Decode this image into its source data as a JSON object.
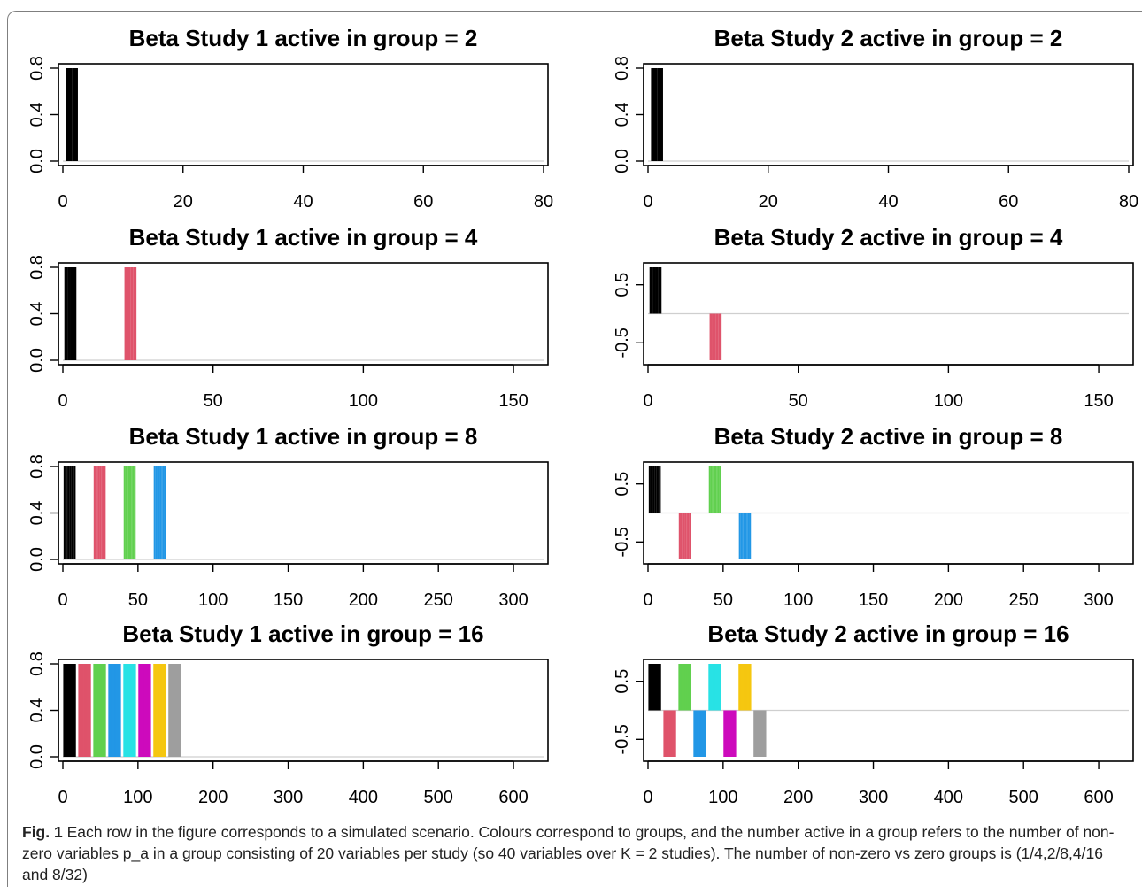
{
  "chart_data": [
    {
      "type": "bar",
      "title": "Beta Study 1 active in group = 2",
      "xlabel": "",
      "ylabel": "",
      "xlim": [
        0,
        80
      ],
      "ylim": [
        0,
        0.8
      ],
      "xticks": [
        "0",
        "20",
        "40",
        "60",
        "80"
      ],
      "yticks": [
        "0.0",
        "0.4",
        "0.8"
      ],
      "series": [
        {
          "color": "#000000",
          "x": [
            1,
            2
          ],
          "values": [
            0.8,
            0.8
          ]
        }
      ]
    },
    {
      "type": "bar",
      "title": "Beta Study 2 active in group = 2",
      "xlabel": "",
      "ylabel": "",
      "xlim": [
        0,
        80
      ],
      "ylim": [
        0,
        0.8
      ],
      "xticks": [
        "0",
        "20",
        "40",
        "60",
        "80"
      ],
      "yticks": [
        "0.0",
        "0.4",
        "0.8"
      ],
      "series": [
        {
          "color": "#000000",
          "x": [
            1,
            2
          ],
          "values": [
            0.8,
            0.8
          ]
        }
      ]
    },
    {
      "type": "bar",
      "title": "Beta Study 1 active in group = 4",
      "xlabel": "",
      "ylabel": "",
      "xlim": [
        0,
        160
      ],
      "ylim": [
        0,
        0.8
      ],
      "xticks": [
        "0",
        "50",
        "100",
        "150"
      ],
      "yticks": [
        "0.0",
        "0.4",
        "0.8"
      ],
      "series": [
        {
          "color": "#000000",
          "x": [
            1,
            2,
            3,
            4
          ],
          "values": [
            0.8,
            0.8,
            0.8,
            0.8
          ]
        },
        {
          "color": "#df536b",
          "x": [
            21,
            22,
            23,
            24
          ],
          "values": [
            0.8,
            0.8,
            0.8,
            0.8
          ]
        }
      ]
    },
    {
      "type": "bar",
      "title": "Beta Study 2 active in group = 4",
      "xlabel": "",
      "ylabel": "",
      "xlim": [
        0,
        160
      ],
      "ylim": [
        -0.8,
        0.8
      ],
      "xticks": [
        "0",
        "50",
        "100",
        "150"
      ],
      "yticks": [
        "-0.5",
        "0.5"
      ],
      "series": [
        {
          "color": "#000000",
          "x": [
            1,
            2,
            3,
            4
          ],
          "values": [
            0.8,
            0.8,
            0.8,
            0.8
          ]
        },
        {
          "color": "#df536b",
          "x": [
            21,
            22,
            23,
            24
          ],
          "values": [
            -0.8,
            -0.8,
            -0.8,
            -0.8
          ]
        }
      ]
    },
    {
      "type": "bar",
      "title": "Beta Study 1 active in group = 8",
      "xlabel": "",
      "ylabel": "",
      "xlim": [
        0,
        320
      ],
      "ylim": [
        0,
        0.8
      ],
      "xticks": [
        "0",
        "50",
        "100",
        "150",
        "200",
        "250",
        "300"
      ],
      "yticks": [
        "0.0",
        "0.4",
        "0.8"
      ],
      "series": [
        {
          "color": "#000000",
          "x": [
            1,
            2,
            3,
            4,
            5,
            6,
            7,
            8
          ],
          "values": [
            0.8,
            0.8,
            0.8,
            0.8,
            0.8,
            0.8,
            0.8,
            0.8
          ]
        },
        {
          "color": "#df536b",
          "x": [
            21,
            22,
            23,
            24,
            25,
            26,
            27,
            28
          ],
          "values": [
            0.8,
            0.8,
            0.8,
            0.8,
            0.8,
            0.8,
            0.8,
            0.8
          ]
        },
        {
          "color": "#61d04f",
          "x": [
            41,
            42,
            43,
            44,
            45,
            46,
            47,
            48
          ],
          "values": [
            0.8,
            0.8,
            0.8,
            0.8,
            0.8,
            0.8,
            0.8,
            0.8
          ]
        },
        {
          "color": "#2297e6",
          "x": [
            61,
            62,
            63,
            64,
            65,
            66,
            67,
            68
          ],
          "values": [
            0.8,
            0.8,
            0.8,
            0.8,
            0.8,
            0.8,
            0.8,
            0.8
          ]
        }
      ]
    },
    {
      "type": "bar",
      "title": "Beta Study 2 active in group = 8",
      "xlabel": "",
      "ylabel": "",
      "xlim": [
        0,
        320
      ],
      "ylim": [
        -0.8,
        0.8
      ],
      "xticks": [
        "0",
        "50",
        "100",
        "150",
        "200",
        "250",
        "300"
      ],
      "yticks": [
        "-0.5",
        "0.5"
      ],
      "series": [
        {
          "color": "#000000",
          "x": [
            1,
            2,
            3,
            4,
            5,
            6,
            7,
            8
          ],
          "values": [
            0.8,
            0.8,
            0.8,
            0.8,
            0.8,
            0.8,
            0.8,
            0.8
          ]
        },
        {
          "color": "#df536b",
          "x": [
            21,
            22,
            23,
            24,
            25,
            26,
            27,
            28
          ],
          "values": [
            -0.8,
            -0.8,
            -0.8,
            -0.8,
            -0.8,
            -0.8,
            -0.8,
            -0.8
          ]
        },
        {
          "color": "#61d04f",
          "x": [
            41,
            42,
            43,
            44,
            45,
            46,
            47,
            48
          ],
          "values": [
            0.8,
            0.8,
            0.8,
            0.8,
            0.8,
            0.8,
            0.8,
            0.8
          ]
        },
        {
          "color": "#2297e6",
          "x": [
            61,
            62,
            63,
            64,
            65,
            66,
            67,
            68
          ],
          "values": [
            -0.8,
            -0.8,
            -0.8,
            -0.8,
            -0.8,
            -0.8,
            -0.8,
            -0.8
          ]
        }
      ]
    },
    {
      "type": "bar",
      "title": "Beta Study 1 active in group = 16",
      "xlabel": "",
      "ylabel": "",
      "xlim": [
        0,
        640
      ],
      "ylim": [
        0,
        0.8
      ],
      "xticks": [
        "0",
        "100",
        "200",
        "300",
        "400",
        "500",
        "600"
      ],
      "yticks": [
        "0.0",
        "0.4",
        "0.8"
      ],
      "series": [
        {
          "color": "#000000",
          "x": [
            1,
            2,
            3,
            4,
            5,
            6,
            7,
            8,
            9,
            10,
            11,
            12,
            13,
            14,
            15,
            16
          ],
          "values": [
            0.8,
            0.8,
            0.8,
            0.8,
            0.8,
            0.8,
            0.8,
            0.8,
            0.8,
            0.8,
            0.8,
            0.8,
            0.8,
            0.8,
            0.8,
            0.8
          ]
        },
        {
          "color": "#df536b",
          "x": [
            21,
            22,
            23,
            24,
            25,
            26,
            27,
            28,
            29,
            30,
            31,
            32,
            33,
            34,
            35,
            36
          ],
          "values": [
            0.8,
            0.8,
            0.8,
            0.8,
            0.8,
            0.8,
            0.8,
            0.8,
            0.8,
            0.8,
            0.8,
            0.8,
            0.8,
            0.8,
            0.8,
            0.8
          ]
        },
        {
          "color": "#61d04f",
          "x": [
            41,
            42,
            43,
            44,
            45,
            46,
            47,
            48,
            49,
            50,
            51,
            52,
            53,
            54,
            55,
            56
          ],
          "values": [
            0.8,
            0.8,
            0.8,
            0.8,
            0.8,
            0.8,
            0.8,
            0.8,
            0.8,
            0.8,
            0.8,
            0.8,
            0.8,
            0.8,
            0.8,
            0.8
          ]
        },
        {
          "color": "#2297e6",
          "x": [
            61,
            62,
            63,
            64,
            65,
            66,
            67,
            68,
            69,
            70,
            71,
            72,
            73,
            74,
            75,
            76
          ],
          "values": [
            0.8,
            0.8,
            0.8,
            0.8,
            0.8,
            0.8,
            0.8,
            0.8,
            0.8,
            0.8,
            0.8,
            0.8,
            0.8,
            0.8,
            0.8,
            0.8
          ]
        },
        {
          "color": "#28e2e5",
          "x": [
            81,
            82,
            83,
            84,
            85,
            86,
            87,
            88,
            89,
            90,
            91,
            92,
            93,
            94,
            95,
            96
          ],
          "values": [
            0.8,
            0.8,
            0.8,
            0.8,
            0.8,
            0.8,
            0.8,
            0.8,
            0.8,
            0.8,
            0.8,
            0.8,
            0.8,
            0.8,
            0.8,
            0.8
          ]
        },
        {
          "color": "#cd0bbc",
          "x": [
            101,
            102,
            103,
            104,
            105,
            106,
            107,
            108,
            109,
            110,
            111,
            112,
            113,
            114,
            115,
            116
          ],
          "values": [
            0.8,
            0.8,
            0.8,
            0.8,
            0.8,
            0.8,
            0.8,
            0.8,
            0.8,
            0.8,
            0.8,
            0.8,
            0.8,
            0.8,
            0.8,
            0.8
          ]
        },
        {
          "color": "#f5c710",
          "x": [
            121,
            122,
            123,
            124,
            125,
            126,
            127,
            128,
            129,
            130,
            131,
            132,
            133,
            134,
            135,
            136
          ],
          "values": [
            0.8,
            0.8,
            0.8,
            0.8,
            0.8,
            0.8,
            0.8,
            0.8,
            0.8,
            0.8,
            0.8,
            0.8,
            0.8,
            0.8,
            0.8,
            0.8
          ]
        },
        {
          "color": "#9e9e9e",
          "x": [
            141,
            142,
            143,
            144,
            145,
            146,
            147,
            148,
            149,
            150,
            151,
            152,
            153,
            154,
            155,
            156
          ],
          "values": [
            0.8,
            0.8,
            0.8,
            0.8,
            0.8,
            0.8,
            0.8,
            0.8,
            0.8,
            0.8,
            0.8,
            0.8,
            0.8,
            0.8,
            0.8,
            0.8
          ]
        }
      ]
    },
    {
      "type": "bar",
      "title": "Beta Study 2 active in group = 16",
      "xlabel": "",
      "ylabel": "",
      "xlim": [
        0,
        640
      ],
      "ylim": [
        -0.8,
        0.8
      ],
      "xticks": [
        "0",
        "100",
        "200",
        "300",
        "400",
        "500",
        "600"
      ],
      "yticks": [
        "-0.5",
        "0.5"
      ],
      "series": [
        {
          "color": "#000000",
          "x": [
            1,
            2,
            3,
            4,
            5,
            6,
            7,
            8,
            9,
            10,
            11,
            12,
            13,
            14,
            15,
            16
          ],
          "values": [
            0.8,
            0.8,
            0.8,
            0.8,
            0.8,
            0.8,
            0.8,
            0.8,
            0.8,
            0.8,
            0.8,
            0.8,
            0.8,
            0.8,
            0.8,
            0.8
          ]
        },
        {
          "color": "#df536b",
          "x": [
            21,
            22,
            23,
            24,
            25,
            26,
            27,
            28,
            29,
            30,
            31,
            32,
            33,
            34,
            35,
            36
          ],
          "values": [
            -0.8,
            -0.8,
            -0.8,
            -0.8,
            -0.8,
            -0.8,
            -0.8,
            -0.8,
            -0.8,
            -0.8,
            -0.8,
            -0.8,
            -0.8,
            -0.8,
            -0.8,
            -0.8
          ]
        },
        {
          "color": "#61d04f",
          "x": [
            41,
            42,
            43,
            44,
            45,
            46,
            47,
            48,
            49,
            50,
            51,
            52,
            53,
            54,
            55,
            56
          ],
          "values": [
            0.8,
            0.8,
            0.8,
            0.8,
            0.8,
            0.8,
            0.8,
            0.8,
            0.8,
            0.8,
            0.8,
            0.8,
            0.8,
            0.8,
            0.8,
            0.8
          ]
        },
        {
          "color": "#2297e6",
          "x": [
            61,
            62,
            63,
            64,
            65,
            66,
            67,
            68,
            69,
            70,
            71,
            72,
            73,
            74,
            75,
            76
          ],
          "values": [
            -0.8,
            -0.8,
            -0.8,
            -0.8,
            -0.8,
            -0.8,
            -0.8,
            -0.8,
            -0.8,
            -0.8,
            -0.8,
            -0.8,
            -0.8,
            -0.8,
            -0.8,
            -0.8
          ]
        },
        {
          "color": "#28e2e5",
          "x": [
            81,
            82,
            83,
            84,
            85,
            86,
            87,
            88,
            89,
            90,
            91,
            92,
            93,
            94,
            95,
            96
          ],
          "values": [
            0.8,
            0.8,
            0.8,
            0.8,
            0.8,
            0.8,
            0.8,
            0.8,
            0.8,
            0.8,
            0.8,
            0.8,
            0.8,
            0.8,
            0.8,
            0.8
          ]
        },
        {
          "color": "#cd0bbc",
          "x": [
            101,
            102,
            103,
            104,
            105,
            106,
            107,
            108,
            109,
            110,
            111,
            112,
            113,
            114,
            115,
            116
          ],
          "values": [
            -0.8,
            -0.8,
            -0.8,
            -0.8,
            -0.8,
            -0.8,
            -0.8,
            -0.8,
            -0.8,
            -0.8,
            -0.8,
            -0.8,
            -0.8,
            -0.8,
            -0.8,
            -0.8
          ]
        },
        {
          "color": "#f5c710",
          "x": [
            121,
            122,
            123,
            124,
            125,
            126,
            127,
            128,
            129,
            130,
            131,
            132,
            133,
            134,
            135,
            136
          ],
          "values": [
            0.8,
            0.8,
            0.8,
            0.8,
            0.8,
            0.8,
            0.8,
            0.8,
            0.8,
            0.8,
            0.8,
            0.8,
            0.8,
            0.8,
            0.8,
            0.8
          ]
        },
        {
          "color": "#9e9e9e",
          "x": [
            141,
            142,
            143,
            144,
            145,
            146,
            147,
            148,
            149,
            150,
            151,
            152,
            153,
            154,
            155,
            156
          ],
          "values": [
            -0.8,
            -0.8,
            -0.8,
            -0.8,
            -0.8,
            -0.8,
            -0.8,
            -0.8,
            -0.8,
            -0.8,
            -0.8,
            -0.8,
            -0.8,
            -0.8,
            -0.8,
            -0.8
          ]
        }
      ]
    }
  ],
  "caption": {
    "label": "Fig. 1",
    "text": "Each row in the figure corresponds to a simulated scenario. Colours correspond to groups, and the number active in a group refers to the number of non-zero variables p_a in a group consisting of 20 variables per study (so 40 variables over K = 2 studies). The number of non-zero vs zero groups is (1/4,2/8,4/16 and 8/32)"
  }
}
